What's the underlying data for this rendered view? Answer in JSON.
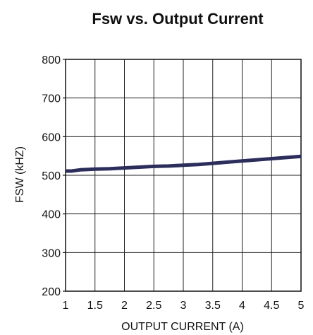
{
  "chart_data": {
    "type": "line",
    "title": "Fsw vs. Output Current",
    "xlabel": "OUTPUT CURRENT (A)",
    "ylabel": "FSW (kHZ)",
    "xlim": [
      1,
      5
    ],
    "ylim": [
      200,
      800
    ],
    "xticks": [
      1,
      1.5,
      2,
      2.5,
      3,
      3.5,
      4,
      4.5,
      5
    ],
    "xtick_labels": [
      "1",
      "1.5",
      "2",
      "2.5",
      "3",
      "3.5",
      "4",
      "4.5",
      "5"
    ],
    "yticks": [
      200,
      300,
      400,
      500,
      600,
      700,
      800
    ],
    "ytick_labels": [
      "200",
      "300",
      "400",
      "500",
      "600",
      "700",
      "800"
    ],
    "grid": true,
    "line_color": "#2b2d5b",
    "series": [
      {
        "x": [
          1.0,
          1.1,
          1.25,
          1.5,
          1.75,
          2.0,
          2.25,
          2.5,
          2.75,
          3.0,
          3.25,
          3.5,
          3.75,
          4.0,
          4.25,
          4.5,
          4.75,
          5.0
        ],
        "values": [
          511,
          511,
          514,
          516,
          517,
          519,
          521,
          523,
          524,
          526,
          528,
          531,
          534,
          537,
          540,
          543,
          546,
          549
        ]
      }
    ]
  }
}
